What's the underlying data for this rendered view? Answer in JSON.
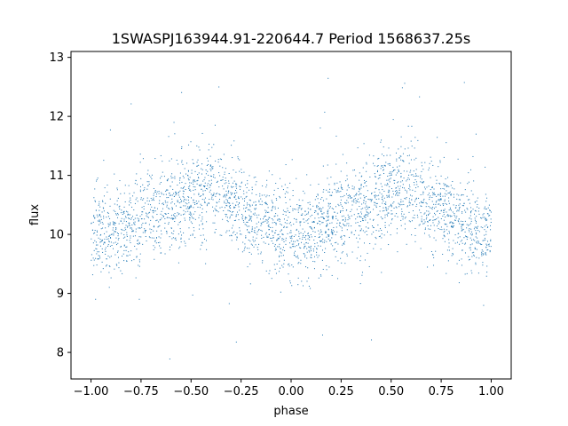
{
  "chart_data": {
    "type": "scatter",
    "title": "1SWASPJ163944.91-220644.7 Period 1568637.25s",
    "xlabel": "phase",
    "ylabel": "flux",
    "xlim": [
      -1.1,
      1.1
    ],
    "ylim": [
      7.55,
      13.1
    ],
    "xticks": [
      -1.0,
      -0.75,
      -0.5,
      -0.25,
      0.0,
      0.25,
      0.5,
      0.75,
      1.0
    ],
    "xtick_labels": [
      "−1.00",
      "−0.75",
      "−0.50",
      "−0.25",
      "0.00",
      "0.25",
      "0.50",
      "0.75",
      "1.00"
    ],
    "yticks": [
      8,
      9,
      10,
      11,
      12,
      13
    ],
    "ytick_labels": [
      "8",
      "9",
      "10",
      "11",
      "12",
      "13"
    ],
    "grid": false,
    "marker_color": "#1f77b4",
    "series": [
      {
        "phase_profile": {
          "x": [
            0.0,
            0.1,
            0.2,
            0.3,
            0.4,
            0.5,
            0.6,
            0.7,
            0.8,
            0.9,
            1.0
          ],
          "y": [
            10.0,
            10.05,
            10.2,
            10.35,
            10.5,
            10.65,
            10.75,
            10.55,
            10.35,
            10.15,
            10.0
          ]
        },
        "x_range": [
          -1.0,
          1.0
        ],
        "typical_y_range": [
          9.3,
          11.3
        ],
        "outlier_y_range": [
          7.8,
          12.8
        ]
      }
    ]
  }
}
